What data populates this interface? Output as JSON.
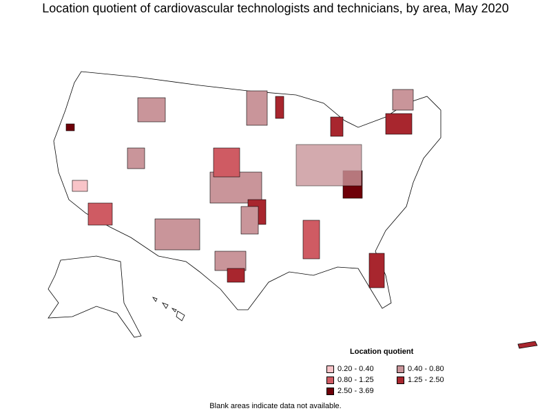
{
  "title": "Location quotient of cardiovascular technologists and technicians, by area, May 2020",
  "legend": {
    "title": "Location quotient",
    "items": [
      {
        "label": "0.20 - 0.40",
        "color": "#f8c4c8"
      },
      {
        "label": "0.40 - 0.80",
        "color": "#c9959a"
      },
      {
        "label": "0.80 - 1.25",
        "color": "#cf5b63"
      },
      {
        "label": "1.25 - 2.50",
        "color": "#a8262e"
      },
      {
        "label": "2.50 - 3.69",
        "color": "#6e0008"
      }
    ]
  },
  "note": "Blank areas indicate data not available."
}
